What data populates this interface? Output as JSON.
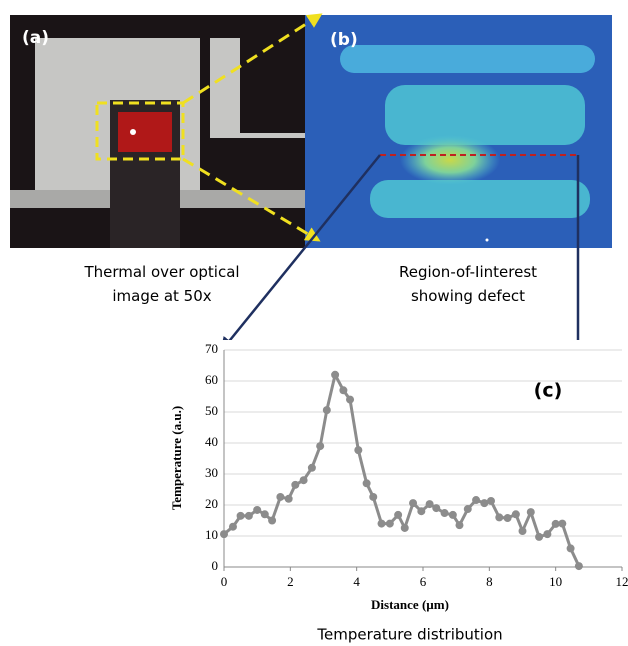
{
  "panels": {
    "a": {
      "label": "(a)",
      "caption": "Thermal over optical image at 50x"
    },
    "b": {
      "label": "(b)",
      "caption": "Region-of-Iinterest showing defect"
    }
  },
  "chart_data": {
    "type": "line",
    "annotation": "(c)",
    "caption": "Temperature distribution",
    "x_label": "Distance (µm)",
    "y_label": "Temperature (a.u.)",
    "xlim": [
      0,
      12
    ],
    "xticks": [
      0,
      2,
      4,
      6,
      8,
      10,
      12
    ],
    "ylim": [
      0,
      70
    ],
    "yticks": [
      0,
      10,
      20,
      30,
      40,
      50,
      60,
      70
    ],
    "grid": true,
    "series": [
      {
        "color": "#8c8c8c",
        "x": [
          0,
          0.27,
          0.5,
          0.75,
          1.0,
          1.23,
          1.45,
          1.7,
          1.95,
          2.15,
          2.4,
          2.65,
          2.9,
          3.1,
          3.35,
          3.6,
          3.8,
          4.05,
          4.3,
          4.5,
          4.75,
          5.0,
          5.25,
          5.45,
          5.7,
          5.95,
          6.2,
          6.4,
          6.65,
          6.9,
          7.1,
          7.35,
          7.6,
          7.85,
          8.05,
          8.3,
          8.55,
          8.8,
          9.0,
          9.25,
          9.5,
          9.75,
          10.0,
          10.2,
          10.45,
          10.7
        ],
        "values": [
          10.6,
          13,
          16.5,
          16.5,
          18.4,
          17,
          15,
          22.6,
          22,
          26.5,
          28,
          32,
          39,
          50.6,
          62,
          57,
          54,
          37.7,
          27,
          22.6,
          14,
          14,
          16.8,
          12.6,
          20.6,
          18,
          20.3,
          19,
          17.4,
          16.8,
          13.5,
          18.7,
          21.6,
          20.6,
          21.3,
          16,
          15.8,
          17,
          11.6,
          17.7,
          9.7,
          10.6,
          13.9,
          14,
          6,
          0.3
        ]
      }
    ]
  }
}
